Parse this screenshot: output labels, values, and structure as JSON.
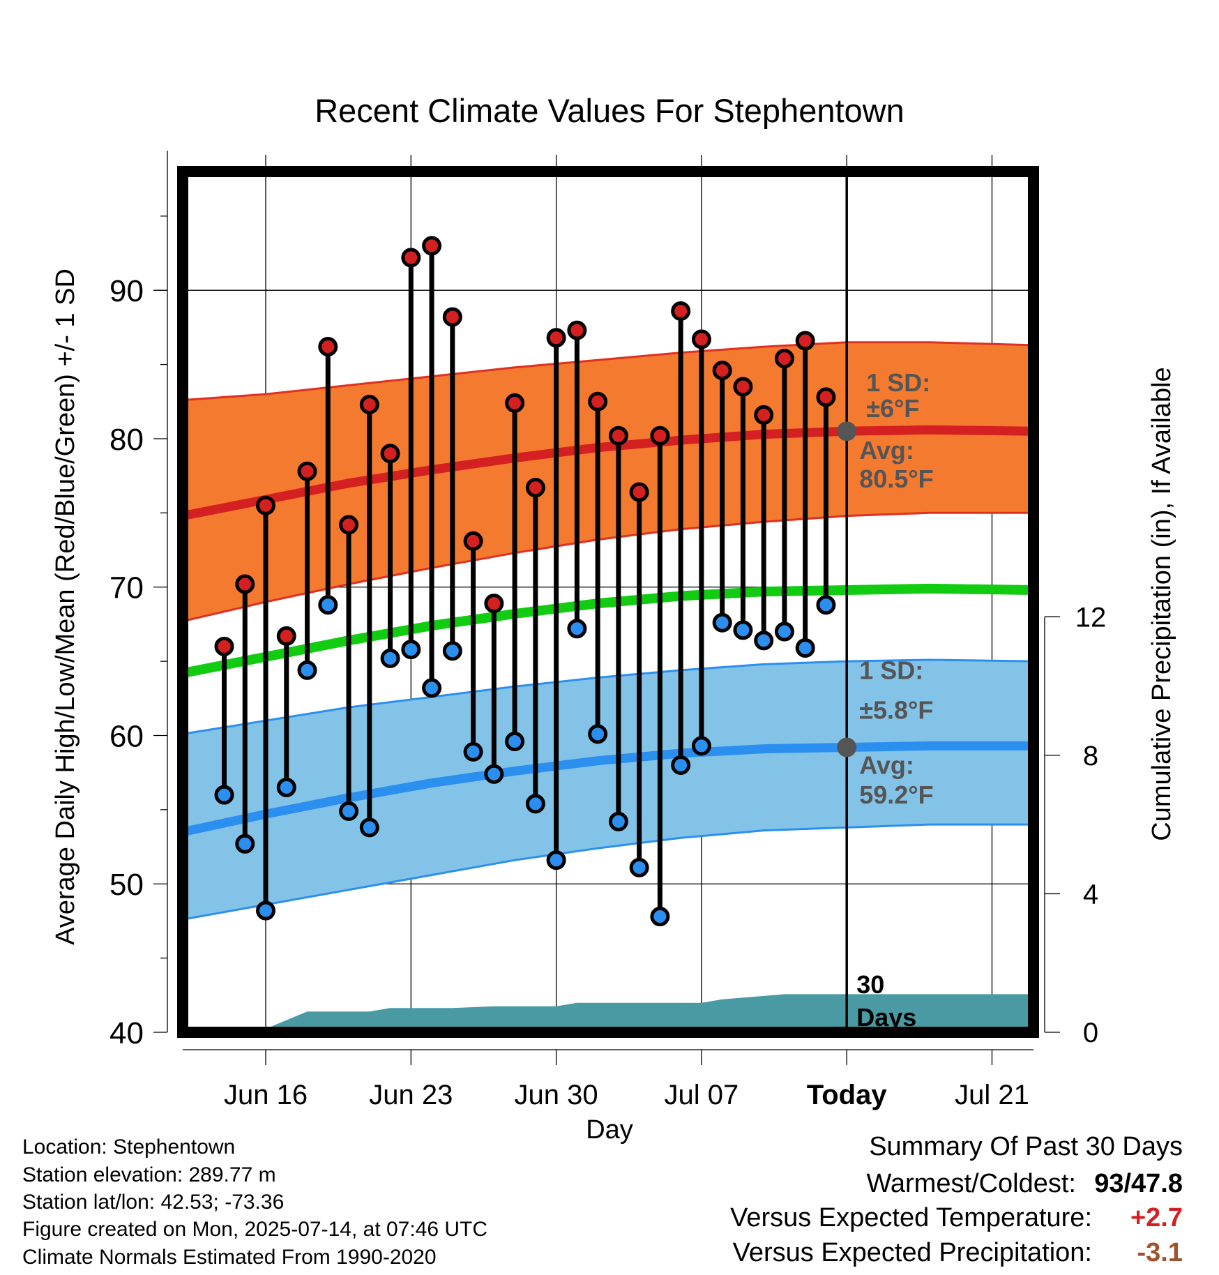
{
  "chart_data": {
    "type": "line",
    "title": "Recent Climate Values For Stephentown",
    "xlabel": "Day",
    "ylabel": "Average Daily High/Low/Mean (Red/Blue/Green) +/- 1 SD",
    "y2label": "Cumulative Precipitation (in), If Available",
    "ylim": [
      40,
      98
    ],
    "y_ticks": [
      40,
      50,
      60,
      70,
      80,
      90
    ],
    "y2_ticks": [
      0,
      4,
      8,
      12
    ],
    "y2_inches_per_degree": 0.4286,
    "xlim": [
      "2025-06-12",
      "2025-07-23"
    ],
    "x_ticks": [
      {
        "date": "2025-06-16",
        "label": "Jun 16"
      },
      {
        "date": "2025-06-23",
        "label": "Jun 23"
      },
      {
        "date": "2025-06-30",
        "label": "Jun 30"
      },
      {
        "date": "2025-07-07",
        "label": "Jul 07"
      },
      {
        "date": "2025-07-14",
        "label": "Today"
      },
      {
        "date": "2025-07-21",
        "label": "Jul 21"
      }
    ],
    "grid": true,
    "today": "2025-07-14",
    "daily": [
      {
        "date": "2025-06-14",
        "high": 66.0,
        "low": 56.0
      },
      {
        "date": "2025-06-15",
        "high": 70.2,
        "low": 52.7
      },
      {
        "date": "2025-06-16",
        "high": 75.5,
        "low": 48.2
      },
      {
        "date": "2025-06-17",
        "high": 66.7,
        "low": 56.5
      },
      {
        "date": "2025-06-18",
        "high": 77.8,
        "low": 64.4
      },
      {
        "date": "2025-06-19",
        "high": 86.2,
        "low": 68.8
      },
      {
        "date": "2025-06-20",
        "high": 74.2,
        "low": 54.9
      },
      {
        "date": "2025-06-21",
        "high": 82.3,
        "low": 53.8
      },
      {
        "date": "2025-06-22",
        "high": 79.0,
        "low": 65.2
      },
      {
        "date": "2025-06-23",
        "high": 92.2,
        "low": 65.8
      },
      {
        "date": "2025-06-24",
        "high": 93.0,
        "low": 63.2
      },
      {
        "date": "2025-06-25",
        "high": 88.2,
        "low": 65.7
      },
      {
        "date": "2025-06-26",
        "high": 73.1,
        "low": 58.9
      },
      {
        "date": "2025-06-27",
        "high": 68.9,
        "low": 57.4
      },
      {
        "date": "2025-06-28",
        "high": 82.4,
        "low": 59.6
      },
      {
        "date": "2025-06-29",
        "high": 76.7,
        "low": 55.4
      },
      {
        "date": "2025-06-30",
        "high": 86.8,
        "low": 51.6
      },
      {
        "date": "2025-07-01",
        "high": 87.3,
        "low": 67.2
      },
      {
        "date": "2025-07-02",
        "high": 82.5,
        "low": 60.1
      },
      {
        "date": "2025-07-03",
        "high": 80.2,
        "low": 54.2
      },
      {
        "date": "2025-07-04",
        "high": 76.4,
        "low": 51.1
      },
      {
        "date": "2025-07-05",
        "high": 80.2,
        "low": 47.8
      },
      {
        "date": "2025-07-06",
        "high": 88.6,
        "low": 58.0
      },
      {
        "date": "2025-07-07",
        "high": 86.7,
        "low": 59.3
      },
      {
        "date": "2025-07-08",
        "high": 84.6,
        "low": 67.6
      },
      {
        "date": "2025-07-09",
        "high": 83.5,
        "low": 67.1
      },
      {
        "date": "2025-07-10",
        "high": 81.6,
        "low": 66.4
      },
      {
        "date": "2025-07-11",
        "high": 85.4,
        "low": 67.0
      },
      {
        "date": "2025-07-12",
        "high": 86.6,
        "low": 65.9
      },
      {
        "date": "2025-07-13",
        "high": 82.8,
        "low": 68.8
      }
    ],
    "normals": {
      "date": [
        "2025-06-12",
        "2025-06-16",
        "2025-06-20",
        "2025-06-24",
        "2025-06-28",
        "2025-07-02",
        "2025-07-06",
        "2025-07-10",
        "2025-07-14",
        "2025-07-18",
        "2025-07-23"
      ],
      "high_avg": [
        74.8,
        75.9,
        77.0,
        77.9,
        78.7,
        79.4,
        79.9,
        80.3,
        80.5,
        80.6,
        80.5
      ],
      "low_avg": [
        53.5,
        54.7,
        55.8,
        56.8,
        57.6,
        58.3,
        58.8,
        59.1,
        59.2,
        59.3,
        59.3
      ],
      "mean_avg": [
        64.2,
        65.3,
        66.4,
        67.4,
        68.2,
        68.9,
        69.4,
        69.7,
        69.8,
        69.9,
        69.8
      ],
      "high_sd_upper": [
        82.6,
        83.0,
        83.6,
        84.2,
        84.8,
        85.3,
        85.8,
        86.2,
        86.5,
        86.5,
        86.3
      ],
      "high_sd_lower": [
        67.7,
        69.0,
        70.2,
        71.3,
        72.3,
        73.2,
        73.9,
        74.4,
        74.8,
        75.0,
        75.0
      ],
      "low_sd_upper": [
        60.1,
        61.0,
        61.9,
        62.6,
        63.3,
        63.9,
        64.4,
        64.8,
        65.0,
        65.1,
        65.0
      ],
      "low_sd_lower": [
        47.6,
        48.6,
        49.6,
        50.6,
        51.6,
        52.4,
        53.1,
        53.6,
        53.8,
        54.0,
        54.0
      ]
    },
    "precip_cumulative": {
      "date": [
        "2025-06-12",
        "2025-06-13",
        "2025-06-15",
        "2025-06-16",
        "2025-06-18",
        "2025-06-21",
        "2025-06-22",
        "2025-06-25",
        "2025-06-27",
        "2025-06-30",
        "2025-07-01",
        "2025-07-07",
        "2025-07-08",
        "2025-07-09",
        "2025-07-11",
        "2025-07-23"
      ],
      "value": [
        0.0,
        0.1,
        0.1,
        0.1,
        0.6,
        0.6,
        0.7,
        0.7,
        0.75,
        0.75,
        0.85,
        0.85,
        0.95,
        1.0,
        1.1,
        1.1
      ]
    },
    "annotations": {
      "high_sd_line1": "1 SD:",
      "high_sd_line2": "±6°F",
      "high_avg_line1": "Avg:",
      "high_avg_line2": "80.5°F",
      "low_sd_line1": "1 SD:",
      "low_sd_line2": "±5.8°F",
      "low_avg_line1": "Avg:",
      "low_avg_line2": "59.2°F",
      "days_line1": "30",
      "days_line2": "Days"
    },
    "colors": {
      "high_point": "#d42020",
      "low_point": "#2b8ff0",
      "high_band": "#f47a30",
      "high_avg_line": "#d42020",
      "low_band": "#84c3e8",
      "low_avg_line": "#2b8ff0",
      "band_edge_high": "#e03020",
      "band_edge_low": "#2b8ff0",
      "mean_line": "#11cc11",
      "precip": "#4a9aa4",
      "annotation": "#555555",
      "today_marker": "#555555"
    }
  },
  "info": {
    "location": "Location: Stephentown",
    "elevation": "Station elevation: 289.77 m",
    "latlon": "Station lat/lon: 42.53; -73.36",
    "created": "Figure created on Mon, 2025-07-14, at 07:46 UTC",
    "normals": "Climate Normals Estimated From 1990-2020"
  },
  "summary": {
    "title": "Summary Of Past 30 Days",
    "warmest_label": "Warmest/Coldest:",
    "warmest_value": "93",
    "coldest_value": "/47.8",
    "temp_label": "Versus Expected Temperature:",
    "temp_value": "+2.7",
    "temp_color": "#d42020",
    "precip_label": "Versus Expected Precipitation:",
    "precip_value": "-3.1",
    "precip_color": "#a0522d"
  }
}
